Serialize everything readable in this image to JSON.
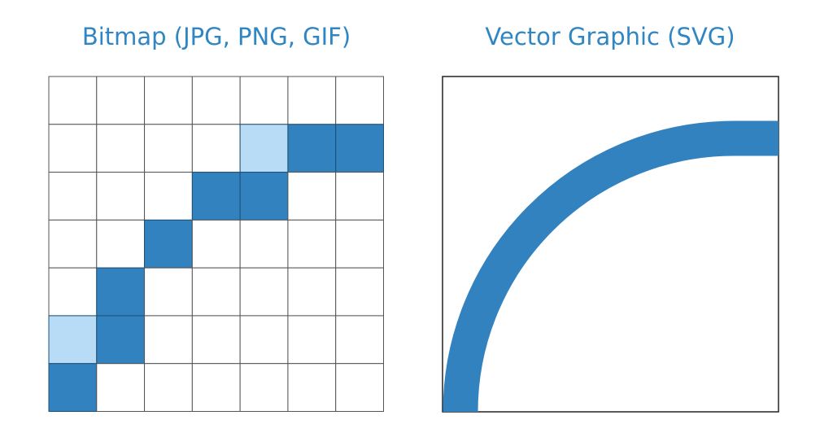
{
  "bitmap": {
    "title": "Bitmap (JPG, PNG, GIF)"
  },
  "vector": {
    "title": "Vector Graphic (SVG)"
  }
}
